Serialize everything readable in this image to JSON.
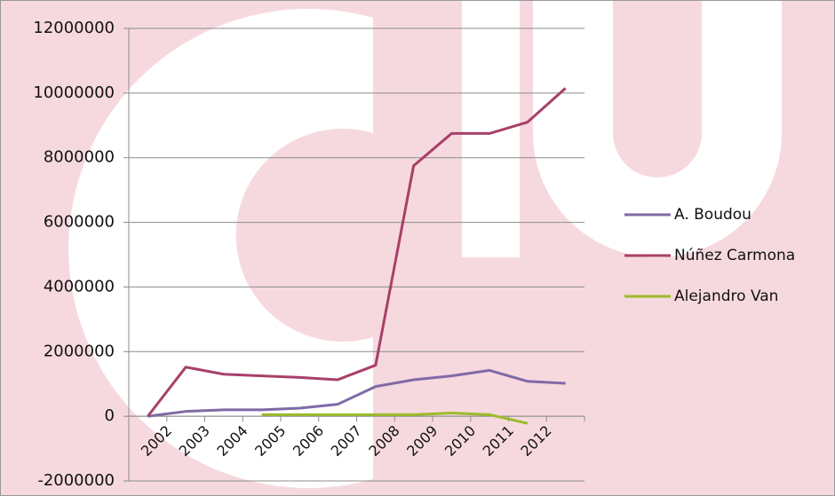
{
  "chart_data": {
    "type": "line",
    "categories": [
      null,
      "2002",
      "2003",
      "2004",
      "2005",
      "2006",
      "2007",
      "2008",
      "2009",
      "2010",
      "2011",
      "2012"
    ],
    "series": [
      {
        "name": "A. Boudou",
        "color": "#7f6aa6",
        "values": [
          0,
          150000,
          200000,
          200000,
          250000,
          370000,
          920000,
          1130000,
          1250000,
          1420000,
          1080000,
          1020000
        ]
      },
      {
        "name": "Núñez Carmona",
        "color": "#a8406a",
        "values": [
          0,
          1520000,
          1300000,
          1250000,
          1200000,
          1130000,
          1580000,
          7750000,
          8750000,
          8750000,
          9100000,
          10150000
        ]
      },
      {
        "name": "Alejandro Van",
        "color": "#9bbb2a",
        "values": [
          null,
          null,
          null,
          50000,
          50000,
          50000,
          50000,
          50000,
          100000,
          50000,
          -220000,
          null
        ]
      }
    ],
    "ylim": [
      -2000000,
      12000000
    ],
    "yticks": [
      -2000000,
      0,
      2000000,
      4000000,
      6000000,
      8000000,
      10000000,
      12000000
    ],
    "grid": true,
    "legend": "right"
  }
}
